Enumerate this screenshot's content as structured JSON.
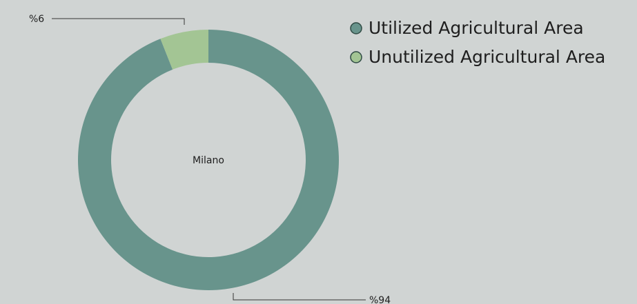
{
  "chart_data": {
    "type": "donut",
    "center_label": "Milano",
    "categories": [
      "Utilized Agricultural Area",
      "Unutilized Agricultural Area"
    ],
    "values": [
      94,
      6
    ],
    "value_labels": [
      "%94",
      "%6"
    ],
    "colors": [
      "#68948c",
      "#a3c594"
    ],
    "legend": "top-right"
  }
}
